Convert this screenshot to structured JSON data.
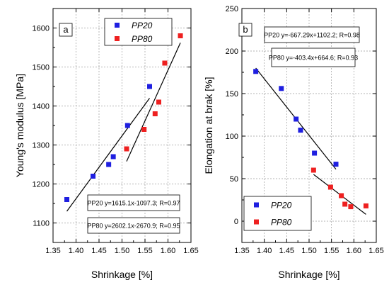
{
  "chart_data": [
    {
      "type": "scatter",
      "panel_label": "a",
      "xlabel": "Shrinkage [%]",
      "ylabel": "Young's modulus [MPa]",
      "xlim": [
        1.35,
        1.65
      ],
      "ylim": [
        1050,
        1650
      ],
      "xticks": [
        "1.35",
        "1.40",
        "1.45",
        "1.50",
        "1.55",
        "1.60",
        "1.65"
      ],
      "yticks": [
        "1100",
        "1200",
        "1300",
        "1400",
        "1500",
        "1600"
      ],
      "grid": true,
      "legend_position": "top-center",
      "series": [
        {
          "name": "PP20",
          "color": "#1f1fe0",
          "x": [
            1.38,
            1.437,
            1.471,
            1.481,
            1.512,
            1.56
          ],
          "y": [
            1160,
            1220,
            1250,
            1270,
            1350,
            1450
          ],
          "fit": {
            "x": [
              1.38,
              1.56
            ],
            "y": [
              1130,
              1420
            ]
          },
          "equation": "PP20 y=1615.1x-1097.3; R=0.97"
        },
        {
          "name": "PP80",
          "color": "#ee2020",
          "x": [
            1.51,
            1.548,
            1.572,
            1.58,
            1.593,
            1.627
          ],
          "y": [
            1290,
            1340,
            1380,
            1410,
            1510,
            1580
          ],
          "fit": {
            "x": [
              1.51,
              1.627
            ],
            "y": [
              1258,
              1562
            ]
          },
          "equation": "PP80 y=2602.1x-2670.9; R=0.95"
        }
      ]
    },
    {
      "type": "scatter",
      "panel_label": "b",
      "xlabel": "Shrinkage [%]",
      "ylabel": "Elongation at brak [%]",
      "xlim": [
        1.35,
        1.65
      ],
      "ylim": [
        -25,
        250
      ],
      "xticks": [
        "1.35",
        "1.40",
        "1.45",
        "1.50",
        "1.55",
        "1.60",
        "1.65"
      ],
      "yticks": [
        "0",
        "50",
        "100",
        "150",
        "200",
        "250"
      ],
      "grid": true,
      "legend_position": "bottom-left",
      "series": [
        {
          "name": "PP20",
          "color": "#1f1fe0",
          "x": [
            1.381,
            1.438,
            1.471,
            1.481,
            1.512,
            1.56
          ],
          "y": [
            176,
            156,
            120,
            107,
            80,
            67
          ],
          "fit": {
            "x": [
              1.381,
              1.56
            ],
            "y": [
              180,
              61
            ]
          },
          "equation": "PP20 y=-667.29x+1102.2; R=0.98"
        },
        {
          "name": "PP80",
          "color": "#ee2020",
          "x": [
            1.51,
            1.548,
            1.572,
            1.58,
            1.593,
            1.627
          ],
          "y": [
            60,
            40,
            30,
            20,
            17,
            18
          ],
          "fit": {
            "x": [
              1.51,
              1.627
            ],
            "y": [
              55,
              8
            ]
          },
          "equation": "PP80 y=-403.4x+664.6; R=0.93"
        }
      ]
    }
  ]
}
